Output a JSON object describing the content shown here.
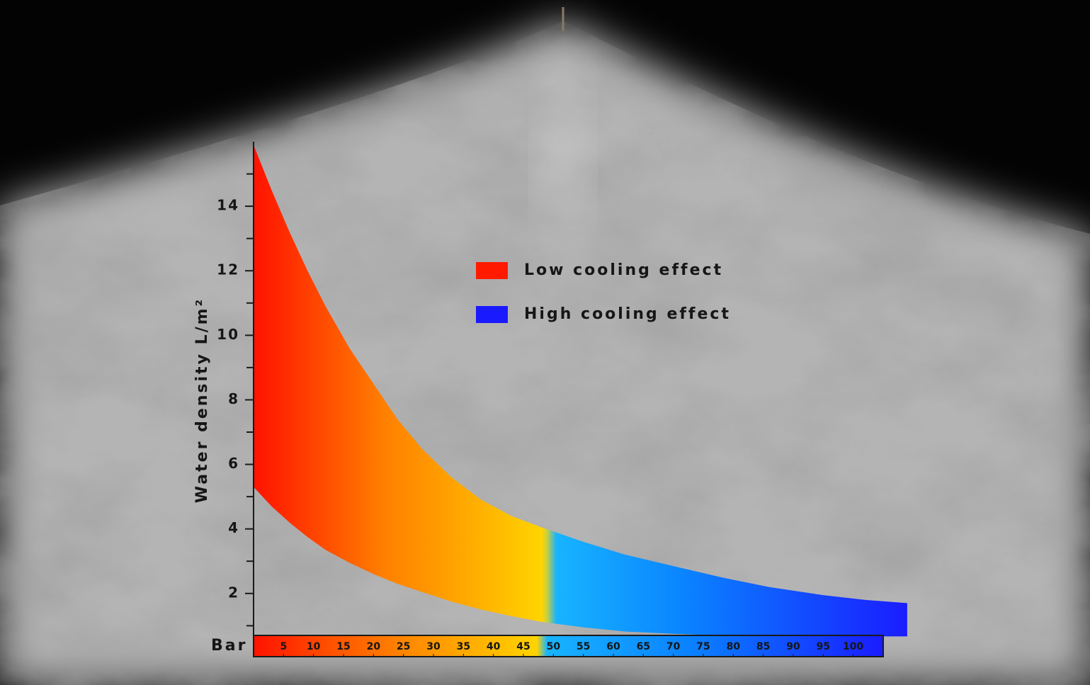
{
  "chart_data": {
    "type": "band",
    "y_label": "Water density L/m²",
    "x_label": "Bar",
    "x": [
      0,
      3,
      6,
      9,
      12,
      16,
      20,
      24,
      28,
      33,
      38,
      43,
      48,
      55,
      62,
      70,
      78,
      86,
      95,
      102,
      109
    ],
    "series": [
      {
        "values": [
          15.9,
          14.5,
          13.2,
          12.0,
          10.9,
          9.6,
          8.5,
          7.4,
          6.5,
          5.6,
          4.9,
          4.4,
          4.05,
          3.6,
          3.2,
          2.85,
          2.5,
          2.2,
          1.95,
          1.8,
          1.7
        ]
      },
      {
        "values": [
          5.3,
          4.7,
          4.2,
          3.75,
          3.35,
          2.95,
          2.6,
          2.3,
          2.05,
          1.75,
          1.5,
          1.3,
          1.12,
          0.95,
          0.82,
          0.75,
          0.7,
          0.68,
          0.67,
          0.67,
          0.67
        ]
      }
    ],
    "xlim": [
      0,
      105
    ],
    "ylim": [
      0.7,
      16
    ],
    "xticks": [
      5,
      10,
      15,
      20,
      25,
      30,
      35,
      40,
      45,
      50,
      55,
      60,
      65,
      70,
      75,
      80,
      85,
      90,
      95,
      100
    ],
    "yticks": [
      2,
      4,
      6,
      8,
      10,
      12,
      14
    ],
    "yminorticks": [
      1,
      3,
      5,
      7,
      9,
      11,
      13,
      15
    ],
    "legend": [
      {
        "label": "Low cooling effect",
        "color": "#ff1a00"
      },
      {
        "label": "High cooling effect",
        "color": "#1a1aff"
      }
    ]
  }
}
